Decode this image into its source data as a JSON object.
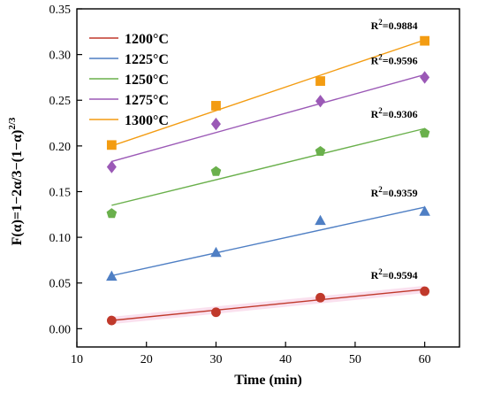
{
  "chart_data": {
    "type": "scatter",
    "title": "",
    "xlabel": "Time (min)",
    "ylabel": "F(α)=1−2α/3−(1−α)^(2/3)",
    "xlim": [
      10,
      65
    ],
    "ylim": [
      -0.02,
      0.35
    ],
    "xticks": [
      10,
      20,
      30,
      40,
      50,
      60
    ],
    "yticks": [
      0.0,
      0.05,
      0.1,
      0.15,
      0.2,
      0.25,
      0.3,
      0.35
    ],
    "ytick_labels": [
      "0.00",
      "0.05",
      "0.10",
      "0.15",
      "0.20",
      "0.25",
      "0.30",
      "0.35"
    ],
    "grid": false,
    "legend_position": "top-left",
    "series": [
      {
        "name": "1200°C",
        "color": "#c0392b",
        "marker": "circle",
        "x": [
          15,
          30,
          45,
          60
        ],
        "values": [
          0.009,
          0.018,
          0.034,
          0.041
        ],
        "fit": [
          0.009,
          0.043
        ],
        "r2_label": "R",
        "r2_sup": "2",
        "r2_value": "=0.9594"
      },
      {
        "name": "1225°C",
        "color": "#4f7fc4",
        "marker": "triangle",
        "x": [
          15,
          30,
          45,
          60
        ],
        "values": [
          0.057,
          0.083,
          0.118,
          0.128
        ],
        "fit": [
          0.058,
          0.133
        ],
        "r2_label": "R",
        "r2_sup": "2",
        "r2_value": "=0.9359"
      },
      {
        "name": "1250°C",
        "color": "#6ab04c",
        "marker": "pentagon",
        "x": [
          15,
          30,
          45,
          60
        ],
        "values": [
          0.126,
          0.172,
          0.194,
          0.214
        ],
        "fit": [
          0.135,
          0.219
        ],
        "r2_label": "R",
        "r2_sup": "2",
        "r2_value": "=0.9306"
      },
      {
        "name": "1275°C",
        "color": "#9b59b6",
        "marker": "diamond",
        "x": [
          15,
          30,
          45,
          60
        ],
        "values": [
          0.177,
          0.224,
          0.249,
          0.275
        ],
        "fit": [
          0.183,
          0.278
        ],
        "r2_label": "R",
        "r2_sup": "2",
        "r2_value": "=0.9596"
      },
      {
        "name": "1300°C",
        "color": "#f39c12",
        "marker": "square",
        "x": [
          15,
          30,
          45,
          60
        ],
        "values": [
          0.201,
          0.244,
          0.271,
          0.315
        ],
        "fit": [
          0.2,
          0.316
        ],
        "r2_label": "R",
        "r2_sup": "2",
        "r2_value": "=0.9884"
      }
    ]
  }
}
